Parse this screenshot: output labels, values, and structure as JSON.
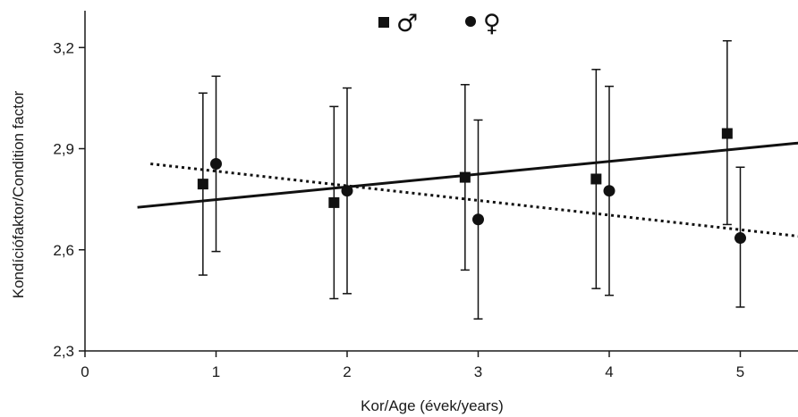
{
  "chart_data": {
    "type": "scatter",
    "xlabel": "Kor/Age (évek/years)",
    "ylabel": "Kondíciófaktor/Condition factor",
    "xlim": [
      0,
      5.45
    ],
    "ylim": [
      2.3,
      3.3
    ],
    "x_ticks": [
      "0",
      "1",
      "2",
      "3",
      "4",
      "5"
    ],
    "y_ticks": [
      "2,3",
      "2,6",
      "2,9",
      "3,2"
    ],
    "legend_position": "top-center",
    "series": [
      {
        "name": "♂",
        "marker": "square",
        "color": "#111111",
        "x": [
          0.9,
          1.9,
          2.9,
          3.9,
          4.9
        ],
        "y": [
          2.795,
          2.74,
          2.815,
          2.81,
          2.945
        ],
        "error_low": [
          2.525,
          2.455,
          2.54,
          2.485,
          2.675
        ],
        "error_high": [
          3.065,
          3.025,
          3.09,
          3.135,
          3.22
        ],
        "trendline": {
          "style": "solid",
          "x": [
            0.4,
            5.45
          ],
          "y": [
            2.726,
            2.917
          ]
        }
      },
      {
        "name": "♀",
        "marker": "circle",
        "color": "#111111",
        "x": [
          1,
          2,
          3,
          4,
          5
        ],
        "y": [
          2.855,
          2.775,
          2.69,
          2.775,
          2.635
        ],
        "error_low": [
          2.595,
          2.47,
          2.395,
          2.465,
          2.43
        ],
        "error_high": [
          3.115,
          3.08,
          2.985,
          3.085,
          2.845
        ],
        "trendline": {
          "style": "dotted",
          "x": [
            0.5,
            5.45
          ],
          "y": [
            2.855,
            2.64
          ]
        }
      }
    ]
  }
}
